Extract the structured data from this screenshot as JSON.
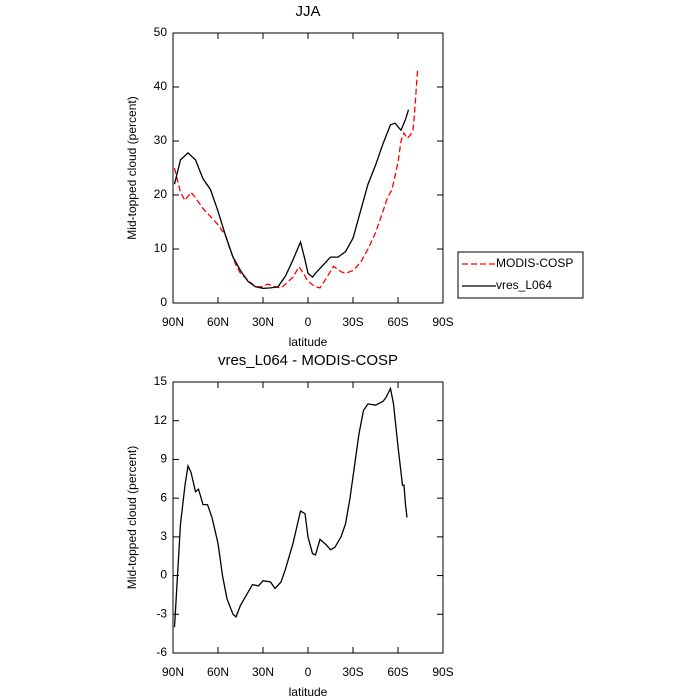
{
  "chart_data": [
    {
      "type": "line",
      "title": "JJA",
      "xlabel": "latitude",
      "ylabel": "Mid-topped cloud (percent)",
      "xlim": [
        90,
        -90
      ],
      "xticks": [
        {
          "value": 90,
          "label": "90N"
        },
        {
          "value": 60,
          "label": "60N"
        },
        {
          "value": 30,
          "label": "30N"
        },
        0,
        {
          "value": -30,
          "label": "30S"
        },
        {
          "value": -60,
          "label": "60S"
        },
        {
          "value": -90,
          "label": "90S"
        }
      ],
      "ylim": [
        0,
        50
      ],
      "yticks": [
        0,
        10,
        20,
        30,
        40,
        50
      ],
      "legend": "right",
      "series": [
        {
          "name": "MODIS-COSP",
          "color": "#ff0000",
          "linestyle": "dashed",
          "x": [
            89,
            85,
            82,
            78,
            75,
            70,
            65,
            60,
            55,
            52,
            48,
            45,
            40,
            35,
            30,
            27,
            22,
            18,
            15,
            10,
            6,
            3,
            0,
            -5,
            -8,
            -12,
            -17,
            -22,
            -25,
            -30,
            -35,
            -40,
            -45,
            -50,
            -53,
            -56,
            -60,
            -62,
            -64,
            -66,
            -68,
            -70,
            -71,
            -73
          ],
          "values": [
            25,
            20.5,
            19,
            20.5,
            19.5,
            17.5,
            16,
            14.5,
            12.5,
            10,
            7,
            5.5,
            4.2,
            3,
            3,
            3.5,
            3,
            2.8,
            3.5,
            4.8,
            6.7,
            5.5,
            4,
            3,
            2.8,
            4.5,
            6.8,
            5.8,
            5.5,
            6,
            7.5,
            10,
            13,
            17,
            19.5,
            21,
            26,
            30,
            31.5,
            30.5,
            31,
            32,
            35,
            43
          ]
        },
        {
          "name": "vres_L064",
          "color": "#000000",
          "linestyle": "solid",
          "x": [
            89,
            85,
            80,
            75,
            70,
            65,
            60,
            55,
            50,
            45,
            40,
            35,
            30,
            25,
            20,
            15,
            10,
            5,
            2,
            0,
            -3,
            -5,
            -10,
            -15,
            -20,
            -25,
            -30,
            -35,
            -40,
            -45,
            -50,
            -55,
            -58,
            -62,
            -65,
            -67
          ],
          "values": [
            22,
            26.5,
            27.8,
            26.5,
            23,
            21,
            17,
            12.5,
            8.5,
            6,
            4,
            3,
            2.7,
            2.8,
            3,
            5,
            8,
            11.3,
            8,
            5.5,
            4.8,
            5.5,
            7,
            8.5,
            8.5,
            9.5,
            12,
            17,
            22,
            25.5,
            29.5,
            33,
            33.3,
            32,
            34,
            35.8
          ]
        }
      ]
    },
    {
      "type": "line",
      "title": "vres_L064 - MODIS-COSP",
      "xlabel": "latitude",
      "ylabel": "Mid-topped cloud (percent)",
      "xlim": [
        90,
        -90
      ],
      "xticks": [
        {
          "value": 90,
          "label": "90N"
        },
        {
          "value": 60,
          "label": "60N"
        },
        {
          "value": 30,
          "label": "30N"
        },
        0,
        {
          "value": -30,
          "label": "30S"
        },
        {
          "value": -60,
          "label": "60S"
        },
        {
          "value": -90,
          "label": "90S"
        }
      ],
      "ylim": [
        -6,
        15
      ],
      "yticks": [
        -6,
        -3,
        0,
        3,
        6,
        9,
        12,
        15
      ],
      "series": [
        {
          "color": "#000000",
          "linestyle": "solid",
          "x": [
            89,
            87,
            85,
            82,
            80,
            78,
            75,
            73,
            70,
            67,
            64,
            60,
            57,
            54,
            50,
            48,
            45,
            40,
            37,
            33,
            30,
            25,
            22,
            18,
            15,
            10,
            7,
            5,
            2,
            0,
            -3,
            -5,
            -8,
            -12,
            -15,
            -18,
            -22,
            -25,
            -28,
            -31,
            -34,
            -37,
            -40,
            -45,
            -50,
            -52,
            -55,
            -57,
            -60,
            -62,
            -63,
            -64,
            -65,
            -66
          ],
          "values": [
            -4,
            0,
            4,
            7,
            8.5,
            8,
            6.5,
            6.7,
            5.5,
            5.5,
            4.5,
            2.5,
            0,
            -1.8,
            -3,
            -3.2,
            -2.3,
            -1.3,
            -0.7,
            -0.8,
            -0.4,
            -0.5,
            -1,
            -0.5,
            0.5,
            2.5,
            4,
            5,
            4.8,
            3,
            1.7,
            1.6,
            2.8,
            2.4,
            2,
            2.2,
            3,
            4,
            6,
            8.5,
            11,
            12.8,
            13.3,
            13.2,
            13.5,
            13.8,
            14.5,
            13.3,
            10,
            8,
            7,
            7,
            5.5,
            4.5
          ]
        }
      ]
    }
  ]
}
